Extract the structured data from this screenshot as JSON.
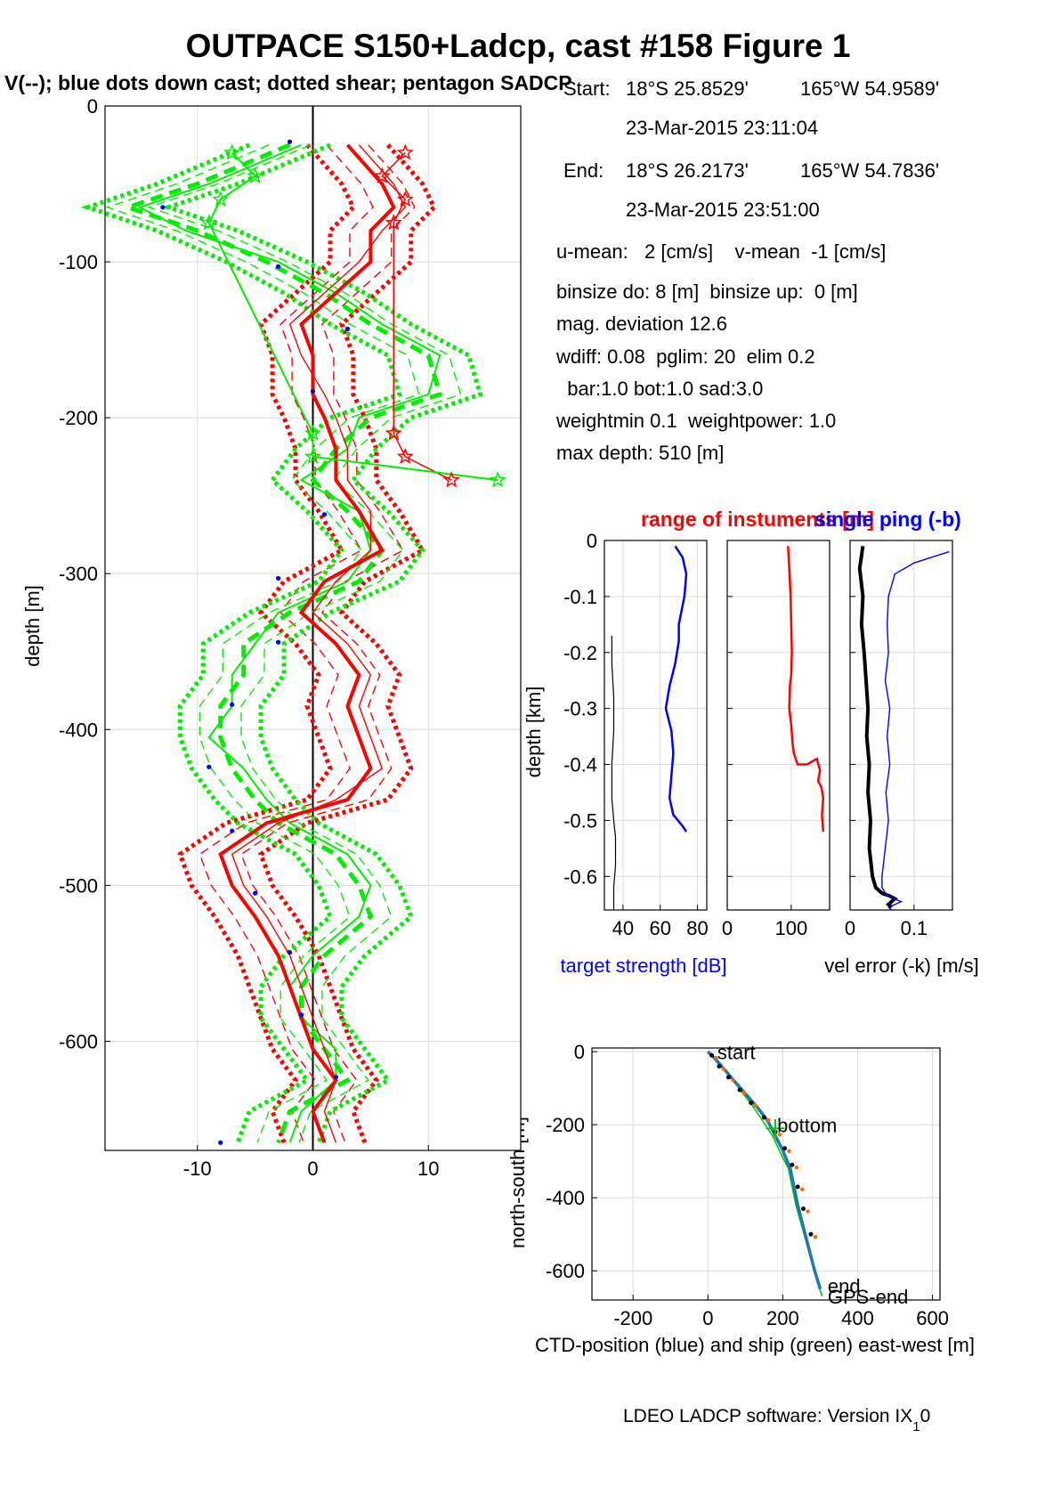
{
  "figure": {
    "title": "OUTPACE S150+Ladcp, cast #158  Figure 1",
    "subtitle": "V(--); blue dots down cast; dotted shear; pentagon SADCP",
    "footer_main": "LDEO LADCP software: Version IX",
    "footer_sub": "1",
    "footer_end": "0"
  },
  "info": {
    "start_label": "Start:",
    "start_lat": "18°S 25.8529'",
    "start_lon": "165°W 54.9589'",
    "start_time": "23-Mar-2015 23:11:04",
    "end_label": "End:",
    "end_lat": "18°S 26.2173'",
    "end_lon": "165°W 54.7836'",
    "end_time": "23-Mar-2015 23:51:00",
    "lines": [
      "u-mean:   2 [cm/s]    v-mean  -1 [cm/s]",
      "binsize do: 8 [m]  binsize up:  0 [m]",
      "mag. deviation 12.6",
      "wdiff: 0.08  pglim: 20  elim 0.2",
      "  bar:1.0 bot:1.0 sad:3.0",
      "weightmin 0.1  weightpower: 1.0",
      "max depth: 510 [m]"
    ]
  },
  "chart_data": [
    {
      "id": "velocity-profile",
      "type": "line",
      "ylabel": "depth [m]",
      "xlabel": "",
      "xlim": [
        -18,
        18
      ],
      "ylim": [
        -670,
        0
      ],
      "xticks": [
        -10,
        0,
        10
      ],
      "yticks": [
        0,
        -100,
        -200,
        -300,
        -400,
        -500,
        -600
      ],
      "grid": true,
      "colors": {
        "u": "#ff0000",
        "v": "#00ee00",
        "dots": "#0000ff"
      },
      "depth": [
        -25,
        -50,
        -65,
        -80,
        -100,
        -120,
        -140,
        -160,
        -185,
        -200,
        -220,
        -240,
        -260,
        -285,
        -305,
        -325,
        -345,
        -365,
        -385,
        -405,
        -425,
        -445,
        -460,
        -480,
        -500,
        -520,
        -545,
        -565,
        -585,
        -605,
        -625,
        -645,
        -665
      ],
      "series": [
        {
          "key": "u",
          "values": [
            3,
            6,
            7,
            5,
            5,
            2,
            -1,
            0,
            0,
            1,
            2,
            2,
            4,
            6,
            1,
            -1,
            2,
            4,
            3,
            4,
            5,
            3,
            -4,
            -8,
            -7,
            -5,
            -3,
            -2,
            -1,
            0,
            2,
            0,
            1
          ]
        },
        {
          "key": "v",
          "values": [
            -2,
            -10,
            -16,
            -10,
            -4,
            1,
            5,
            10,
            11,
            5,
            2,
            0,
            3,
            6,
            4,
            -2,
            -6,
            -6,
            -8,
            -8,
            -7,
            -5,
            -3,
            2,
            4,
            5,
            1,
            -1,
            -1,
            1,
            3,
            -2,
            -3
          ]
        },
        {
          "key": "u_down",
          "values": [
            4,
            7,
            8,
            6,
            4,
            1,
            -2,
            -1,
            1,
            2,
            3,
            3,
            5,
            5,
            2,
            0,
            3,
            5,
            4,
            5,
            6,
            2,
            -3,
            -7,
            -6,
            -4,
            -2,
            -1,
            0,
            1,
            2,
            1,
            2
          ]
        },
        {
          "key": "v_down",
          "values": [
            -1,
            -9,
            -15,
            -11,
            -3,
            2,
            6,
            11,
            10,
            4,
            3,
            -1,
            4,
            5,
            3,
            -3,
            -5,
            -7,
            -7,
            -9,
            -6,
            -4,
            -2,
            3,
            5,
            4,
            0,
            -2,
            -1,
            2,
            2,
            -1,
            -2
          ]
        }
      ],
      "sadcp": {
        "depth": [
          -30,
          -45,
          -60,
          -75,
          -210,
          -225,
          -240
        ],
        "u": [
          8,
          6,
          8,
          7,
          7,
          8,
          12
        ],
        "v": [
          -7,
          -5,
          -8,
          -9,
          0,
          0,
          16
        ]
      },
      "blue_dots": {
        "depth": [
          -23,
          -65,
          -103,
          -143,
          -183,
          -262,
          -303,
          -344,
          -384,
          -424,
          -465,
          -505,
          -543,
          -583,
          -623,
          -665
        ],
        "values": [
          -2,
          -13,
          -3,
          3,
          0,
          1,
          -3,
          -3,
          -7,
          -9,
          -7,
          -5,
          -2,
          -1,
          2,
          -8
        ]
      }
    },
    {
      "id": "target-strength",
      "type": "line",
      "title": "",
      "xlabel": "target strength [dB]",
      "ylabel": "depth [km]",
      "xlim": [
        30,
        85
      ],
      "ylim": [
        -0.66,
        0
      ],
      "xticks": [
        40,
        60,
        80
      ],
      "yticks": [
        0,
        -0.1,
        -0.2,
        -0.3,
        -0.4,
        -0.5,
        -0.6
      ],
      "grid": true,
      "series": [
        {
          "name": "target strength",
          "color": "#0000ff",
          "x": [
            68,
            72,
            74,
            73,
            70,
            70,
            68,
            65,
            63,
            66,
            67,
            66,
            65,
            67,
            72,
            74
          ],
          "y": [
            -0.01,
            -0.03,
            -0.06,
            -0.1,
            -0.15,
            -0.18,
            -0.22,
            -0.26,
            -0.3,
            -0.34,
            -0.38,
            -0.42,
            -0.46,
            -0.49,
            -0.51,
            -0.52
          ]
        },
        {
          "name": "",
          "color": "#000000",
          "x": [
            34,
            34,
            35,
            35,
            34,
            34,
            35,
            36,
            36,
            35,
            35
          ],
          "y": [
            -0.17,
            -0.22,
            -0.28,
            -0.34,
            -0.4,
            -0.46,
            -0.5,
            -0.53,
            -0.58,
            -0.62,
            -0.66
          ]
        }
      ]
    },
    {
      "id": "range",
      "type": "line",
      "title": "range of instuments [m]",
      "xlabel": "",
      "ylabel": "",
      "xlim": [
        0,
        160
      ],
      "ylim": [
        -0.66,
        0
      ],
      "xticks": [
        0,
        100
      ],
      "yticks": [
        0,
        -0.1,
        -0.2,
        -0.3,
        -0.4,
        -0.5,
        -0.6
      ],
      "grid": true,
      "series": [
        {
          "name": "range",
          "color": "#ff0000",
          "x": [
            95,
            97,
            99,
            100,
            101,
            100,
            98,
            97,
            100,
            102,
            104,
            110,
            125,
            140,
            145,
            142,
            147,
            150,
            148,
            150
          ],
          "y": [
            -0.01,
            -0.05,
            -0.1,
            -0.15,
            -0.2,
            -0.24,
            -0.26,
            -0.3,
            -0.33,
            -0.36,
            -0.38,
            -0.4,
            -0.4,
            -0.39,
            -0.41,
            -0.43,
            -0.44,
            -0.46,
            -0.49,
            -0.52
          ]
        }
      ]
    },
    {
      "id": "vel-error",
      "type": "line",
      "title": "single ping (-b)",
      "xlabel": "vel error (-k) [m/s]",
      "ylabel": "",
      "xlim": [
        0,
        0.16
      ],
      "ylim": [
        -0.66,
        0
      ],
      "xticks": [
        0,
        0.1
      ],
      "yticks": [
        0,
        -0.1,
        -0.2,
        -0.3,
        -0.4,
        -0.5,
        -0.6
      ],
      "grid": true,
      "series": [
        {
          "name": "vel error",
          "color": "#000000",
          "x": [
            0.02,
            0.015,
            0.02,
            0.018,
            0.022,
            0.025,
            0.028,
            0.026,
            0.03,
            0.028,
            0.032,
            0.03,
            0.035,
            0.04,
            0.05,
            0.062,
            0.07,
            0.06,
            0.065
          ],
          "y": [
            -0.01,
            -0.05,
            -0.1,
            -0.15,
            -0.2,
            -0.25,
            -0.3,
            -0.35,
            -0.4,
            -0.45,
            -0.5,
            -0.55,
            -0.6,
            -0.62,
            -0.63,
            -0.635,
            -0.64,
            -0.65,
            -0.655
          ]
        },
        {
          "name": "single ping",
          "color": "#0000ff",
          "x": [
            0.155,
            0.1,
            0.07,
            0.06,
            0.058,
            0.06,
            0.055,
            0.062,
            0.058,
            0.062,
            0.056,
            0.06,
            0.055,
            0.05,
            0.05,
            0.058,
            0.08,
            0.06,
            0.065
          ],
          "y": [
            -0.02,
            -0.04,
            -0.06,
            -0.1,
            -0.15,
            -0.2,
            -0.25,
            -0.3,
            -0.35,
            -0.4,
            -0.45,
            -0.5,
            -0.55,
            -0.6,
            -0.62,
            -0.635,
            -0.645,
            -0.655,
            -0.66
          ]
        }
      ]
    },
    {
      "id": "position",
      "type": "line",
      "xlabel": "CTD-position (blue) and ship (green) east-west [m]",
      "ylabel": "north-south [m]",
      "xlim": [
        -310,
        620
      ],
      "ylim": [
        -680,
        10
      ],
      "xticks": [
        -200,
        0,
        200,
        400,
        600
      ],
      "yticks": [
        0,
        -200,
        -400,
        -600
      ],
      "grid": true,
      "annotations": [
        "start",
        "bottom",
        "end",
        "GPS-end"
      ],
      "series": [
        {
          "name": "CTD",
          "color": "#1f77b4",
          "x": [
            0,
            20,
            45,
            70,
            100,
            130,
            160,
            180,
            200,
            220,
            230,
            240,
            255,
            270,
            285,
            300
          ],
          "y": [
            0,
            -20,
            -50,
            -80,
            -115,
            -150,
            -190,
            -230,
            -270,
            -320,
            -370,
            -420,
            -480,
            -540,
            -600,
            -650
          ]
        },
        {
          "name": "ship",
          "color": "#00cc00",
          "x": [
            0,
            25,
            60,
            90,
            120,
            150,
            175,
            195,
            215,
            225,
            235,
            250,
            265,
            280,
            295,
            305
          ],
          "y": [
            0,
            -30,
            -70,
            -110,
            -150,
            -195,
            -235,
            -280,
            -320,
            -370,
            -420,
            -475,
            -530,
            -585,
            -640,
            -670
          ]
        }
      ],
      "markers": {
        "x": [
          10,
          30,
          55,
          85,
          115,
          150,
          180,
          205,
          225,
          240,
          255,
          275
        ],
        "y": [
          -10,
          -40,
          -70,
          -105,
          -140,
          -180,
          -220,
          -265,
          -310,
          -370,
          -430,
          -500
        ]
      }
    }
  ]
}
